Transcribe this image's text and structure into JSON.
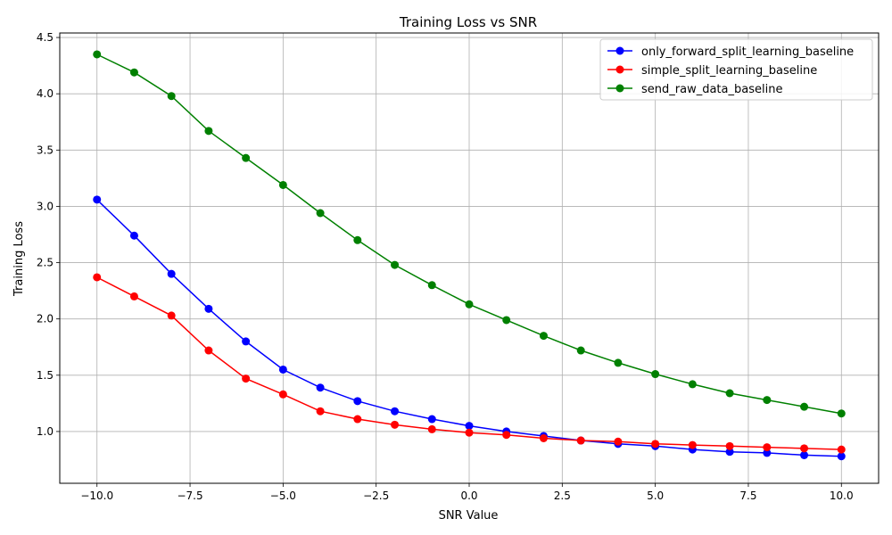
{
  "chart_data": {
    "type": "line",
    "title": "Training Loss vs SNR",
    "xlabel": "SNR Value",
    "ylabel": "Training Loss",
    "xlim": [
      -11,
      11
    ],
    "ylim": [
      0.54,
      4.54
    ],
    "xticks": [
      -10.0,
      -7.5,
      -5.0,
      -2.5,
      0.0,
      2.5,
      5.0,
      7.5,
      10.0
    ],
    "xtick_labels": [
      "−10.0",
      "−7.5",
      "−5.0",
      "−2.5",
      "0.0",
      "2.5",
      "5.0",
      "7.5",
      "10.0"
    ],
    "yticks": [
      1.0,
      1.5,
      2.0,
      2.5,
      3.0,
      3.5,
      4.0,
      4.5
    ],
    "ytick_labels": [
      "1.0",
      "1.5",
      "2.0",
      "2.5",
      "3.0",
      "3.5",
      "4.0",
      "4.5"
    ],
    "grid": true,
    "legend_position": "top-right",
    "x": [
      -10,
      -9,
      -8,
      -7,
      -6,
      -5,
      -4,
      -3,
      -2,
      -1,
      0,
      1,
      2,
      3,
      4,
      5,
      6,
      7,
      8,
      9,
      10
    ],
    "series": [
      {
        "name": "only_forward_split_learning_baseline",
        "color": "#0000ff",
        "values": [
          3.06,
          2.74,
          2.4,
          2.09,
          1.8,
          1.55,
          1.39,
          1.27,
          1.18,
          1.11,
          1.05,
          1.0,
          0.96,
          0.92,
          0.89,
          0.87,
          0.84,
          0.82,
          0.81,
          0.79,
          0.78
        ]
      },
      {
        "name": "simple_split_learning_baseline",
        "color": "#ff0000",
        "values": [
          2.37,
          2.2,
          2.03,
          1.72,
          1.47,
          1.33,
          1.18,
          1.11,
          1.06,
          1.02,
          0.99,
          0.97,
          0.94,
          0.92,
          0.91,
          0.89,
          0.88,
          0.87,
          0.86,
          0.85,
          0.84
        ]
      },
      {
        "name": "send_raw_data_baseline",
        "color": "#008000",
        "values": [
          4.35,
          4.19,
          3.98,
          3.67,
          3.43,
          3.19,
          2.94,
          2.7,
          2.48,
          2.3,
          2.13,
          1.99,
          1.85,
          1.72,
          1.61,
          1.51,
          1.42,
          1.34,
          1.28,
          1.22,
          1.16
        ]
      }
    ]
  }
}
